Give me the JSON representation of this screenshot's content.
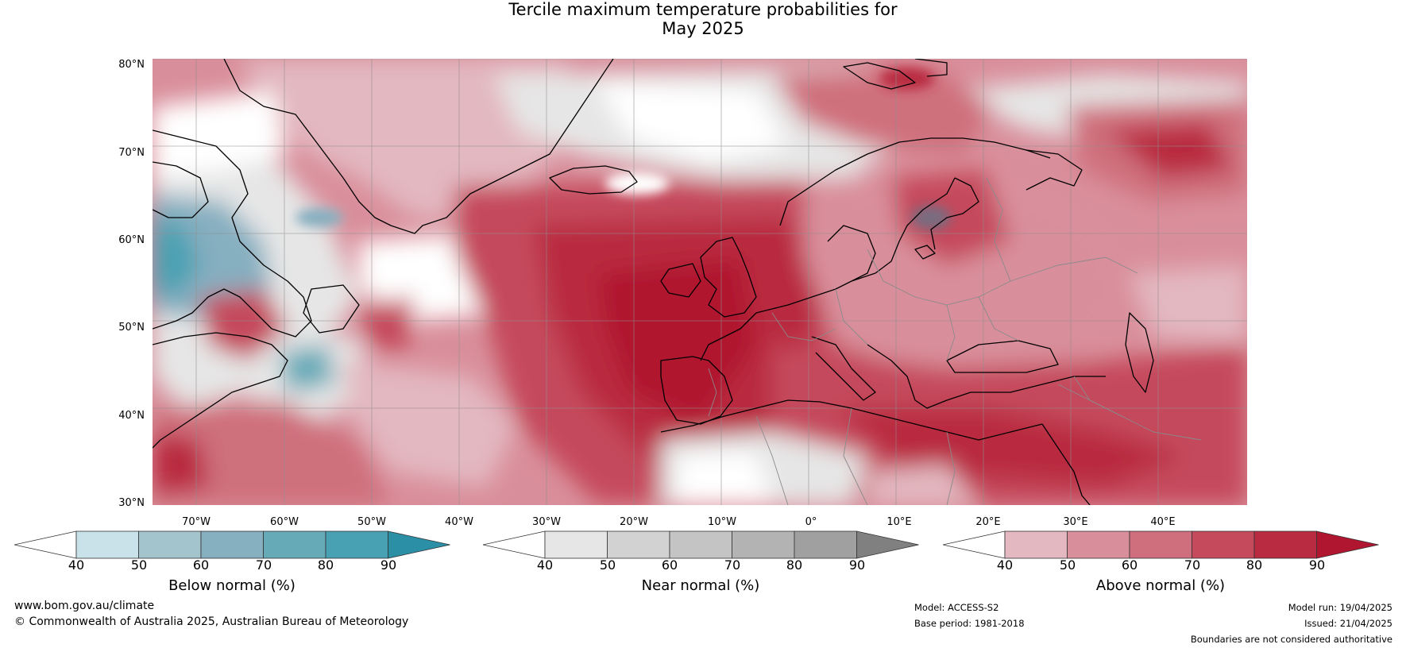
{
  "title": {
    "line1": "Tercile maximum temperature probabilities for",
    "line2": "May 2025"
  },
  "map": {
    "latitude_labels": [
      "80°N",
      "70°N",
      "60°N",
      "50°N",
      "40°N",
      "30°N"
    ],
    "longitude_labels": [
      "70°W",
      "60°W",
      "50°W",
      "40°W",
      "30°W",
      "20°W",
      "10°W",
      "0°",
      "10°E",
      "20°E",
      "30°E",
      "40°E"
    ]
  },
  "colorbars": [
    {
      "title": "Below normal (%)",
      "ticks": [
        "40",
        "50",
        "60",
        "70",
        "80",
        "90"
      ],
      "colors": [
        "#ffffff",
        "#c9e1e8",
        "#a3c4cd",
        "#86afc0",
        "#66aab8",
        "#48a1b3",
        "#2b8fa6"
      ]
    },
    {
      "title": "Near normal (%)",
      "ticks": [
        "40",
        "50",
        "60",
        "70",
        "80",
        "90"
      ],
      "colors": [
        "#ffffff",
        "#e6e6e6",
        "#d2d2d2",
        "#c4c4c4",
        "#b3b3b3",
        "#a0a0a0",
        "#808080"
      ]
    },
    {
      "title": "Above normal (%)",
      "ticks": [
        "40",
        "50",
        "60",
        "70",
        "80",
        "90"
      ],
      "colors": [
        "#ffffff",
        "#e3b8c0",
        "#d98f9b",
        "#cf6f7d",
        "#c54a5c",
        "#b92b41",
        "#b0162f"
      ]
    }
  ],
  "footer": {
    "url": "www.bom.gov.au/climate",
    "copyright": "© Commonwealth of Australia 2025, Australian Bureau of Meteorology",
    "model": "Model: ACCESS-S2",
    "base_period": "Base period: 1981-2018",
    "model_run": "Model run: 19/04/2025",
    "issued": "Issued: 21/04/2025",
    "disclaimer": "Boundaries are not considered authoritative"
  }
}
